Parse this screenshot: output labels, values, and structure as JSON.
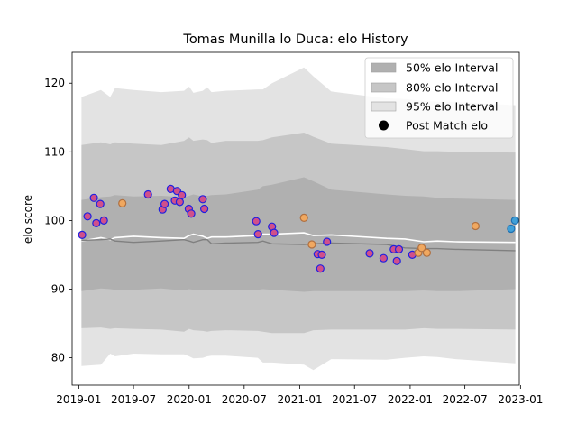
{
  "chart_data": {
    "type": "scatter",
    "title": "Tomas Munilla lo Duca: elo History",
    "xlabel": "",
    "ylabel": "elo score",
    "xlim": [
      "2018-12-10",
      "2022-12-28"
    ],
    "ylim": [
      76,
      124.5
    ],
    "x_ticks": [
      "2019-01",
      "2019-07",
      "2020-01",
      "2020-07",
      "2021-01",
      "2021-07",
      "2022-01",
      "2022-07",
      "2023-01"
    ],
    "y_ticks": [
      80,
      90,
      100,
      110,
      120
    ],
    "grid": false,
    "legend_position": "top-right",
    "legend": [
      {
        "label": "50% elo Interval",
        "color": "#b0b0b0"
      },
      {
        "label": "80% elo Interval",
        "color": "#c6c6c6"
      },
      {
        "label": "95% elo Interval",
        "color": "#e3e3e3"
      },
      {
        "label": "Post Match elo",
        "color": "#000000"
      }
    ],
    "band_dates": [
      "2019-01-10",
      "2019-03-15",
      "2019-04-15",
      "2019-05-01",
      "2019-07-01",
      "2019-10-01",
      "2019-12-15",
      "2020-01-01",
      "2020-01-15",
      "2020-02-15",
      "2020-03-01",
      "2020-03-15",
      "2020-05-01",
      "2020-08-15",
      "2020-09-01",
      "2020-10-01",
      "2021-01-15",
      "2021-02-15",
      "2021-04-15",
      "2021-10-15",
      "2021-12-15",
      "2022-02-15",
      "2022-04-01",
      "2022-06-01",
      "2022-12-15"
    ],
    "series": [
      {
        "name": "Post Match elo",
        "type": "line",
        "color": "#ffffff",
        "values": [
          97.0,
          97.5,
          97.2,
          97.5,
          97.7,
          97.5,
          97.4,
          97.8,
          98.0,
          97.7,
          97.4,
          97.6,
          97.6,
          97.8,
          98.0,
          98.0,
          98.2,
          97.8,
          97.9,
          97.4,
          97.3,
          96.9,
          97.0,
          96.9,
          96.8
        ]
      },
      {
        "name": "50% elo Interval",
        "type": "line",
        "color": "#808080",
        "values": [
          97.1,
          97.2,
          97.3,
          97.0,
          96.8,
          97.0,
          97.2,
          97.0,
          96.8,
          97.2,
          97.2,
          96.6,
          96.7,
          96.8,
          97.0,
          96.6,
          96.5,
          96.6,
          96.7,
          96.5,
          96.0,
          95.9,
          95.9,
          95.8,
          95.6
        ]
      }
    ],
    "bands": {
      "p95_upper": [
        118.0,
        119.0,
        118.0,
        119.3,
        119.0,
        118.7,
        118.9,
        119.5,
        118.6,
        118.9,
        119.4,
        118.7,
        118.9,
        119.1,
        119.1,
        120.0,
        122.3,
        121.0,
        118.8,
        117.8,
        117.7,
        117.4,
        117.3,
        117.3,
        116.8
      ],
      "p80_upper": [
        111.0,
        111.4,
        111.1,
        111.4,
        111.2,
        111.0,
        111.6,
        112.1,
        111.6,
        111.8,
        111.7,
        111.3,
        111.6,
        111.6,
        111.7,
        112.1,
        112.8,
        112.2,
        111.2,
        110.7,
        110.4,
        110.1,
        110.1,
        110.0,
        109.9
      ],
      "p50_upper": [
        103.0,
        103.4,
        103.5,
        103.7,
        103.5,
        103.6,
        103.4,
        103.6,
        103.8,
        103.5,
        103.6,
        103.7,
        103.8,
        104.5,
        105.0,
        105.2,
        106.3,
        105.7,
        104.5,
        103.8,
        103.6,
        103.5,
        103.3,
        103.2,
        103.0
      ],
      "p50_lower": [
        89.7,
        90.1,
        90.0,
        89.9,
        89.9,
        90.1,
        89.8,
        90.0,
        89.9,
        89.8,
        89.9,
        89.9,
        89.8,
        89.9,
        90.0,
        89.9,
        89.6,
        89.7,
        89.7,
        89.7,
        89.7,
        89.8,
        89.7,
        89.7,
        90.0
      ],
      "p80_lower": [
        84.3,
        84.4,
        84.2,
        84.3,
        84.2,
        84.1,
        83.8,
        84.2,
        84.0,
        83.9,
        83.8,
        83.9,
        84.0,
        83.9,
        83.8,
        83.6,
        83.6,
        84.0,
        84.1,
        84.1,
        84.1,
        84.3,
        84.2,
        84.2,
        84.1
      ],
      "p95_lower": [
        78.8,
        79.0,
        80.6,
        80.2,
        80.6,
        80.5,
        80.5,
        80.2,
        79.9,
        80.0,
        80.2,
        80.3,
        80.3,
        80.0,
        79.3,
        79.3,
        79.0,
        78.2,
        79.8,
        79.7,
        80.0,
        80.2,
        80.1,
        79.8,
        79.2
      ]
    },
    "points": [
      {
        "date": "2019-01-12",
        "elo": 97.9,
        "style": "win"
      },
      {
        "date": "2019-01-30",
        "elo": 100.6,
        "style": "win"
      },
      {
        "date": "2019-02-20",
        "elo": 103.3,
        "style": "win"
      },
      {
        "date": "2019-02-28",
        "elo": 99.6,
        "style": "win"
      },
      {
        "date": "2019-03-13",
        "elo": 102.4,
        "style": "win"
      },
      {
        "date": "2019-03-25",
        "elo": 100.0,
        "style": "win"
      },
      {
        "date": "2019-05-25",
        "elo": 102.5,
        "style": "loss"
      },
      {
        "date": "2019-08-18",
        "elo": 103.8,
        "style": "win"
      },
      {
        "date": "2019-10-05",
        "elo": 101.6,
        "style": "win"
      },
      {
        "date": "2019-10-12",
        "elo": 102.4,
        "style": "win"
      },
      {
        "date": "2019-11-01",
        "elo": 104.6,
        "style": "win"
      },
      {
        "date": "2019-11-15",
        "elo": 102.9,
        "style": "win"
      },
      {
        "date": "2019-11-22",
        "elo": 104.3,
        "style": "win"
      },
      {
        "date": "2019-12-01",
        "elo": 102.7,
        "style": "win"
      },
      {
        "date": "2019-12-08",
        "elo": 103.7,
        "style": "win"
      },
      {
        "date": "2019-12-31",
        "elo": 101.7,
        "style": "win"
      },
      {
        "date": "2020-01-08",
        "elo": 101.0,
        "style": "win"
      },
      {
        "date": "2020-02-15",
        "elo": 103.1,
        "style": "win"
      },
      {
        "date": "2020-02-20",
        "elo": 101.7,
        "style": "win"
      },
      {
        "date": "2020-08-10",
        "elo": 99.9,
        "style": "win"
      },
      {
        "date": "2020-08-16",
        "elo": 98.0,
        "style": "win"
      },
      {
        "date": "2020-10-01",
        "elo": 99.1,
        "style": "win"
      },
      {
        "date": "2020-10-08",
        "elo": 98.2,
        "style": "win"
      },
      {
        "date": "2021-01-15",
        "elo": 100.4,
        "style": "loss"
      },
      {
        "date": "2021-02-10",
        "elo": 96.5,
        "style": "loss"
      },
      {
        "date": "2021-03-01",
        "elo": 95.1,
        "style": "win"
      },
      {
        "date": "2021-03-10",
        "elo": 93.0,
        "style": "win"
      },
      {
        "date": "2021-03-15",
        "elo": 95.0,
        "style": "win"
      },
      {
        "date": "2021-04-01",
        "elo": 96.9,
        "style": "win"
      },
      {
        "date": "2021-08-20",
        "elo": 95.2,
        "style": "win"
      },
      {
        "date": "2021-10-05",
        "elo": 94.5,
        "style": "win"
      },
      {
        "date": "2021-11-08",
        "elo": 95.8,
        "style": "win"
      },
      {
        "date": "2021-11-18",
        "elo": 94.1,
        "style": "win"
      },
      {
        "date": "2021-11-25",
        "elo": 95.8,
        "style": "win"
      },
      {
        "date": "2022-01-08",
        "elo": 95.0,
        "style": "win"
      },
      {
        "date": "2022-01-28",
        "elo": 95.3,
        "style": "loss"
      },
      {
        "date": "2022-02-08",
        "elo": 96.0,
        "style": "loss"
      },
      {
        "date": "2022-02-25",
        "elo": 95.3,
        "style": "loss"
      },
      {
        "date": "2022-08-05",
        "elo": 99.2,
        "style": "loss"
      },
      {
        "date": "2022-12-01",
        "elo": 98.8,
        "style": "recent"
      },
      {
        "date": "2022-12-14",
        "elo": 100.0,
        "style": "recent"
      }
    ]
  }
}
